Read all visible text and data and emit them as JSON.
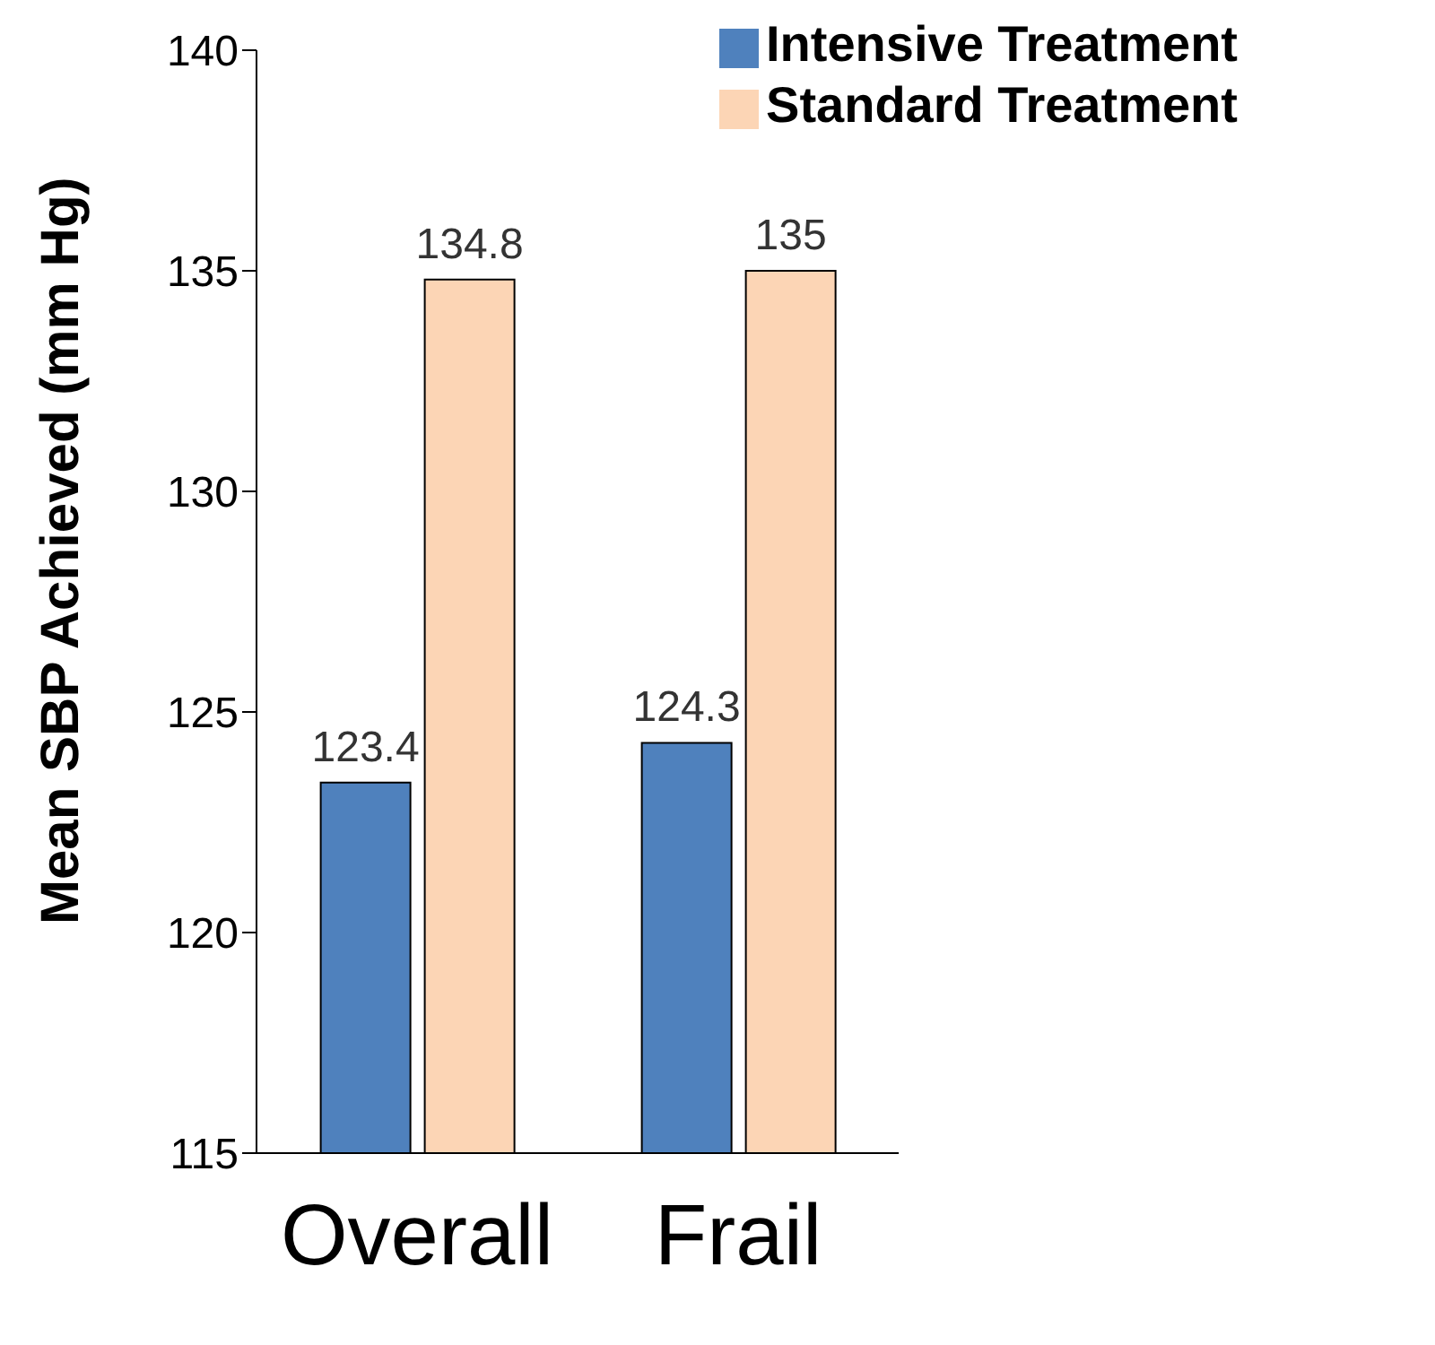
{
  "chart_data": {
    "type": "bar",
    "ylabel": "Mean SBP Achieved (mm Hg)",
    "categories": [
      "Overall",
      "Frail"
    ],
    "series": [
      {
        "name": "Intensive Treatment",
        "color": "#4f81bd",
        "values": [
          123.4,
          124.3
        ]
      },
      {
        "name": "Standard Treatment",
        "color": "#fcd5b5",
        "values": [
          134.8,
          135
        ]
      }
    ],
    "ylim": [
      115,
      140
    ],
    "yticks": [
      115,
      120,
      125,
      130,
      135,
      140
    ],
    "grid": false,
    "legend": "top right",
    "data_labels": true
  }
}
